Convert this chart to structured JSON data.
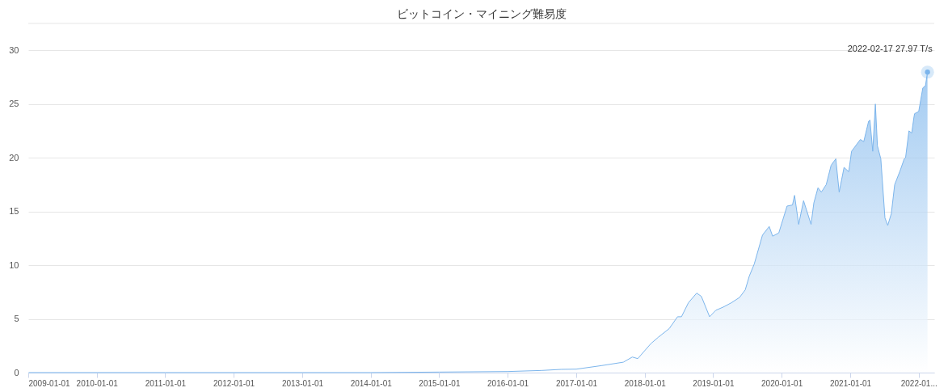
{
  "chart_data": {
    "type": "area",
    "title": "ビットコイン・マイニング難易度",
    "x": [
      "2009-01-03",
      "2011-01-01",
      "2013-01-01",
      "2014-01-01",
      "2015-01-01",
      "2016-01-01",
      "2016-07-01",
      "2016-10-12",
      "2017-01-01",
      "2017-05-15",
      "2017-09-09",
      "2017-10-27",
      "2017-11-25",
      "2018-02-03",
      "2018-03-15",
      "2018-05-12",
      "2018-06-25",
      "2018-07-16",
      "2018-08-22",
      "2018-10-05",
      "2018-10-30",
      "2018-12-13",
      "2019-01-15",
      "2019-02-24",
      "2019-04-08",
      "2019-05-22",
      "2019-06-21",
      "2019-07-13",
      "2019-08-08",
      "2019-09-21",
      "2019-10-27",
      "2019-11-14",
      "2019-12-17",
      "2020-01-30",
      "2020-02-28",
      "2020-03-10",
      "2020-04-01",
      "2020-04-27",
      "2020-06-06",
      "2020-06-21",
      "2020-07-13",
      "2020-07-31",
      "2020-08-26",
      "2020-09-21",
      "2020-10-16",
      "2020-11-03",
      "2020-11-29",
      "2020-12-24",
      "2021-01-08",
      "2021-02-24",
      "2021-03-14",
      "2021-04-09",
      "2021-04-16",
      "2021-05-01",
      "2021-05-15",
      "2021-05-26",
      "2021-06-13",
      "2021-07-05",
      "2021-07-20",
      "2021-08-08",
      "2021-08-26",
      "2021-09-24",
      "2021-10-16",
      "2021-10-23",
      "2021-11-10",
      "2021-11-25",
      "2021-12-06",
      "2021-12-10",
      "2022-01-01",
      "2022-01-23",
      "2022-02-06",
      "2022-02-17"
    ],
    "series": [
      {
        "color": "#7cb5ec",
        "values": [
          0,
          0,
          0,
          0,
          0.05,
          0.1,
          0.2,
          0.3,
          0.32,
          0.65,
          0.97,
          1.45,
          1.3,
          2.7,
          3.3,
          4.1,
          5.2,
          5.2,
          6.5,
          7.4,
          7.1,
          5.2,
          5.8,
          6.1,
          6.5,
          7.0,
          7.7,
          9.0,
          10.1,
          12.8,
          13.6,
          12.7,
          13.0,
          15.5,
          15.6,
          16.5,
          13.8,
          16.0,
          13.8,
          15.8,
          17.2,
          16.8,
          17.5,
          19.3,
          19.9,
          16.8,
          19.1,
          18.7,
          20.6,
          21.7,
          21.5,
          23.4,
          23.5,
          20.6,
          25.0,
          21.1,
          19.9,
          14.4,
          13.7,
          14.8,
          17.5,
          18.8,
          19.9,
          20.0,
          22.5,
          22.3,
          23.7,
          24.1,
          24.3,
          26.5,
          26.7,
          27.97
        ]
      }
    ],
    "xlim": [
      "2009-01-01",
      "2022-03-25"
    ],
    "xticks": [
      {
        "value": "2009-01-01",
        "label": "2009-01-01"
      },
      {
        "value": "2010-01-01",
        "label": "2010-01-01"
      },
      {
        "value": "2011-01-01",
        "label": "2011-01-01"
      },
      {
        "value": "2012-01-01",
        "label": "2012-01-01"
      },
      {
        "value": "2013-01-01",
        "label": "2013-01-01"
      },
      {
        "value": "2014-01-01",
        "label": "2014-01-01"
      },
      {
        "value": "2015-01-01",
        "label": "2015-01-01"
      },
      {
        "value": "2016-01-01",
        "label": "2016-01-01"
      },
      {
        "value": "2017-01-01",
        "label": "2017-01-01"
      },
      {
        "value": "2018-01-01",
        "label": "2018-01-01"
      },
      {
        "value": "2019-01-01",
        "label": "2019-01-01"
      },
      {
        "value": "2020-01-01",
        "label": "2020-01-01"
      },
      {
        "value": "2021-01-01",
        "label": "2021-01-01"
      },
      {
        "value": "2022-01-01",
        "label": "2022-01..."
      }
    ],
    "ylim": [
      0,
      32.5
    ],
    "yticks": [
      0,
      5,
      10,
      15,
      20,
      25,
      30
    ],
    "grid": "y",
    "marker": "none",
    "annotations": [
      {
        "text": "2022-02-17 27.97 T/s",
        "x": "2022-02-17",
        "y": 27.97
      }
    ]
  }
}
